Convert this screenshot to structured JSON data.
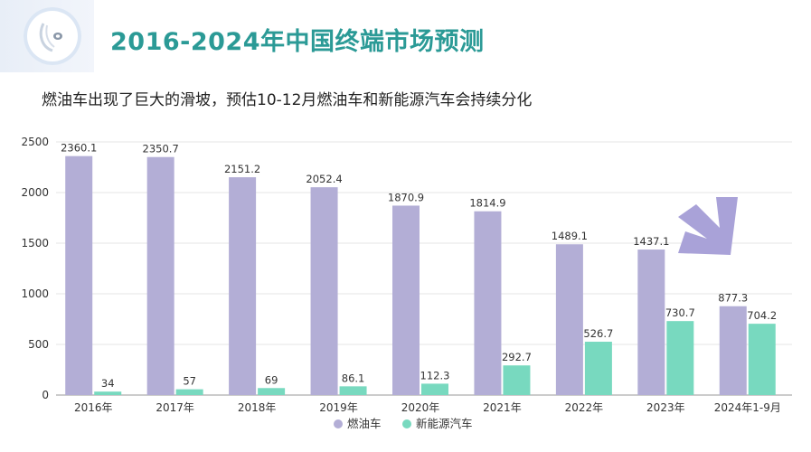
{
  "header": {
    "title": "2016-2024年中国终端市场预测",
    "subtitle": "燃油车出现了巨大的滑坡，预估10-12月燃油车和新能源汽车会持续分化"
  },
  "colors": {
    "title": "#2b9a96",
    "fuel": "#b3aed6",
    "nev": "#78d9bf",
    "arrow": "#a9a2d8"
  },
  "chart_data": {
    "type": "bar",
    "title": "2016-2024年中国终端市场预测",
    "categories": [
      "2016年",
      "2017年",
      "2018年",
      "2019年",
      "2020年",
      "2021年",
      "2022年",
      "2023年",
      "2024年1-9月"
    ],
    "series": [
      {
        "name": "燃油车",
        "values": [
          2360.1,
          2350.7,
          2151.2,
          2052.4,
          1870.9,
          1814.9,
          1489.1,
          1437.1,
          877.3
        ],
        "labels": [
          "2360.1",
          "2350.7",
          "2151.2",
          "2052.4",
          "1870.9",
          "1814.9",
          "1489.1",
          "1437.1",
          "877.3"
        ]
      },
      {
        "name": "新能源汽车",
        "values": [
          34,
          57,
          69,
          86.1,
          112.3,
          292.7,
          526.7,
          730.7,
          704.2
        ],
        "labels": [
          "34",
          "57",
          "69",
          "86.1",
          "112.3",
          "292.7",
          "526.7",
          "730.7",
          "704.2"
        ]
      }
    ],
    "ylim": [
      0,
      2500
    ],
    "yticks": [
      "0",
      "500",
      "1000",
      "1500",
      "2000",
      "2500"
    ],
    "ytick_values": [
      0,
      500,
      1000,
      1500,
      2000,
      2500
    ],
    "grid": true,
    "legend_position": "bottom-center"
  }
}
